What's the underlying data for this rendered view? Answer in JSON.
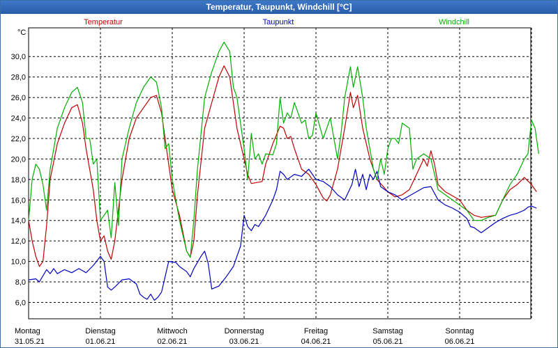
{
  "window": {
    "title": "Temperatur, Taupunkt, Windchill [°C]"
  },
  "chart_data": {
    "type": "line",
    "title": "Temperatur, Taupunkt, Windchill [°C]",
    "ylabel": "°C",
    "ylim": [
      4.4,
      32.8
    ],
    "xlim": [
      0,
      7
    ],
    "y_ticks": [
      "6,0",
      "8,0",
      "10,0",
      "12,0",
      "14,0",
      "16,0",
      "18,0",
      "20,0",
      "22,0",
      "24,0",
      "26,0",
      "28,0",
      "30,0"
    ],
    "y_tick_values": [
      6,
      8,
      10,
      12,
      14,
      16,
      18,
      20,
      22,
      24,
      26,
      28,
      30
    ],
    "x_days": [
      "Montag",
      "Dienstag",
      "Mittwoch",
      "Donnerstag",
      "Freitag",
      "Samstag",
      "Sonntag"
    ],
    "x_dates": [
      "31.05.21",
      "01.06.21",
      "02.06.21",
      "03.06.21",
      "04.06.21",
      "05.06.21",
      "06.06.21"
    ],
    "grid": true,
    "colors": {
      "temperature": "#c00000",
      "dewpoint": "#0000c0",
      "windchill": "#00b000",
      "grid": "#000000"
    },
    "series": [
      {
        "name": "Temperatur",
        "color": "#c00000",
        "points": [
          [
            0,
            14.0
          ],
          [
            0.05,
            12.0
          ],
          [
            0.1,
            10.5
          ],
          [
            0.15,
            9.5
          ],
          [
            0.2,
            10.0
          ],
          [
            0.25,
            13.5
          ],
          [
            0.3,
            18.0
          ],
          [
            0.4,
            21.5
          ],
          [
            0.5,
            23.5
          ],
          [
            0.6,
            25.0
          ],
          [
            0.68,
            25.3
          ],
          [
            0.75,
            23.5
          ],
          [
            0.8,
            21.0
          ],
          [
            0.9,
            17.0
          ],
          [
            0.95,
            14.0
          ],
          [
            1.0,
            12.0
          ],
          [
            1.05,
            12.5
          ],
          [
            1.1,
            11.0
          ],
          [
            1.15,
            10.2
          ],
          [
            1.2,
            12.0
          ],
          [
            1.3,
            18.0
          ],
          [
            1.4,
            22.0
          ],
          [
            1.5,
            24.0
          ],
          [
            1.6,
            25.0
          ],
          [
            1.7,
            26.0
          ],
          [
            1.78,
            26.2
          ],
          [
            1.85,
            24.5
          ],
          [
            1.9,
            22.0
          ],
          [
            2.0,
            17.0
          ],
          [
            2.1,
            14.5
          ],
          [
            2.2,
            11.0
          ],
          [
            2.25,
            10.4
          ],
          [
            2.3,
            12.0
          ],
          [
            2.35,
            16.5
          ],
          [
            2.45,
            23.0
          ],
          [
            2.55,
            25.5
          ],
          [
            2.65,
            28.0
          ],
          [
            2.72,
            29.1
          ],
          [
            2.8,
            28.0
          ],
          [
            2.9,
            23.0
          ],
          [
            3.0,
            20.0
          ],
          [
            3.05,
            18.5
          ],
          [
            3.1,
            17.6
          ],
          [
            3.25,
            17.8
          ],
          [
            3.3,
            19.5
          ],
          [
            3.4,
            21.5
          ],
          [
            3.5,
            23.2
          ],
          [
            3.55,
            23.0
          ],
          [
            3.6,
            22.0
          ],
          [
            3.65,
            22.2
          ],
          [
            3.7,
            21.0
          ],
          [
            3.8,
            19.0
          ],
          [
            3.9,
            18.5
          ],
          [
            4.0,
            17.5
          ],
          [
            4.1,
            16.2
          ],
          [
            4.15,
            15.9
          ],
          [
            4.2,
            16.5
          ],
          [
            4.3,
            19.0
          ],
          [
            4.4,
            23.0
          ],
          [
            4.48,
            26.5
          ],
          [
            4.52,
            25.0
          ],
          [
            4.58,
            26.2
          ],
          [
            4.65,
            23.0
          ],
          [
            4.75,
            20.0
          ],
          [
            4.85,
            18.0
          ],
          [
            5.0,
            16.8
          ],
          [
            5.1,
            16.3
          ],
          [
            5.2,
            16.5
          ],
          [
            5.3,
            17.0
          ],
          [
            5.4,
            18.5
          ],
          [
            5.5,
            20.0
          ],
          [
            5.55,
            19.3
          ],
          [
            5.6,
            20.8
          ],
          [
            5.65,
            19.5
          ],
          [
            5.7,
            17.5
          ],
          [
            5.8,
            16.8
          ],
          [
            5.9,
            16.4
          ],
          [
            6.0,
            16.0
          ],
          [
            6.1,
            15.0
          ],
          [
            6.2,
            14.5
          ],
          [
            6.3,
            14.3
          ],
          [
            6.4,
            14.4
          ],
          [
            6.5,
            14.5
          ],
          [
            6.6,
            16.0
          ],
          [
            6.7,
            17.0
          ],
          [
            6.8,
            17.5
          ],
          [
            6.9,
            18.2
          ],
          [
            7.0,
            17.5
          ],
          [
            7.07,
            16.8
          ]
        ]
      },
      {
        "name": "Taupunkt",
        "color": "#0000c0",
        "points": [
          [
            0,
            8.2
          ],
          [
            0.1,
            8.3
          ],
          [
            0.15,
            8.0
          ],
          [
            0.25,
            9.2
          ],
          [
            0.3,
            8.8
          ],
          [
            0.35,
            9.3
          ],
          [
            0.4,
            8.8
          ],
          [
            0.5,
            9.2
          ],
          [
            0.6,
            8.9
          ],
          [
            0.7,
            9.3
          ],
          [
            0.8,
            8.9
          ],
          [
            0.9,
            9.6
          ],
          [
            1.0,
            10.5
          ],
          [
            1.05,
            10.0
          ],
          [
            1.1,
            7.5
          ],
          [
            1.15,
            7.2
          ],
          [
            1.2,
            7.5
          ],
          [
            1.3,
            8.2
          ],
          [
            1.4,
            8.3
          ],
          [
            1.5,
            7.8
          ],
          [
            1.55,
            6.8
          ],
          [
            1.6,
            6.5
          ],
          [
            1.65,
            6.3
          ],
          [
            1.7,
            6.8
          ],
          [
            1.75,
            6.2
          ],
          [
            1.8,
            6.5
          ],
          [
            1.85,
            7.0
          ],
          [
            1.9,
            8.5
          ],
          [
            1.95,
            10.0
          ],
          [
            2.05,
            9.9
          ],
          [
            2.1,
            9.5
          ],
          [
            2.2,
            9.0
          ],
          [
            2.25,
            8.5
          ],
          [
            2.3,
            9.3
          ],
          [
            2.4,
            10.5
          ],
          [
            2.45,
            11.0
          ],
          [
            2.5,
            9.8
          ],
          [
            2.55,
            7.3
          ],
          [
            2.65,
            7.6
          ],
          [
            2.75,
            8.5
          ],
          [
            2.85,
            9.5
          ],
          [
            2.95,
            11.5
          ],
          [
            3.0,
            14.5
          ],
          [
            3.05,
            13.4
          ],
          [
            3.1,
            13.0
          ],
          [
            3.15,
            13.6
          ],
          [
            3.2,
            13.4
          ],
          [
            3.3,
            14.5
          ],
          [
            3.4,
            16.0
          ],
          [
            3.45,
            17.0
          ],
          [
            3.5,
            18.8
          ],
          [
            3.55,
            18.5
          ],
          [
            3.6,
            18.0
          ],
          [
            3.7,
            18.5
          ],
          [
            3.8,
            18.3
          ],
          [
            3.9,
            19.0
          ],
          [
            3.95,
            18.5
          ],
          [
            4.0,
            18.0
          ],
          [
            4.1,
            17.8
          ],
          [
            4.2,
            17.3
          ],
          [
            4.3,
            16.5
          ],
          [
            4.4,
            16.0
          ],
          [
            4.5,
            17.5
          ],
          [
            4.55,
            19.0
          ],
          [
            4.6,
            17.3
          ],
          [
            4.65,
            18.5
          ],
          [
            4.7,
            17.0
          ],
          [
            4.75,
            18.5
          ],
          [
            4.8,
            18.0
          ],
          [
            4.85,
            18.8
          ],
          [
            4.9,
            17.3
          ],
          [
            5.0,
            16.8
          ],
          [
            5.1,
            16.5
          ],
          [
            5.2,
            16.0
          ],
          [
            5.3,
            16.4
          ],
          [
            5.4,
            16.8
          ],
          [
            5.5,
            17.2
          ],
          [
            5.6,
            17.3
          ],
          [
            5.7,
            16.0
          ],
          [
            5.8,
            15.5
          ],
          [
            5.9,
            15.2
          ],
          [
            6.0,
            14.8
          ],
          [
            6.1,
            14.2
          ],
          [
            6.15,
            13.4
          ],
          [
            6.2,
            13.3
          ],
          [
            6.3,
            12.8
          ],
          [
            6.4,
            13.3
          ],
          [
            6.5,
            13.8
          ],
          [
            6.6,
            14.2
          ],
          [
            6.7,
            14.5
          ],
          [
            6.8,
            14.7
          ],
          [
            6.9,
            15.0
          ],
          [
            6.95,
            15.3
          ],
          [
            7.0,
            15.4
          ],
          [
            7.07,
            15.2
          ]
        ]
      },
      {
        "name": "Windchill",
        "color": "#00b000",
        "points": [
          [
            0,
            14.0
          ],
          [
            0.05,
            18.0
          ],
          [
            0.1,
            19.5
          ],
          [
            0.15,
            19.0
          ],
          [
            0.2,
            17.5
          ],
          [
            0.25,
            15.0
          ],
          [
            0.3,
            19.0
          ],
          [
            0.4,
            23.0
          ],
          [
            0.5,
            25.0
          ],
          [
            0.6,
            26.5
          ],
          [
            0.68,
            27.0
          ],
          [
            0.75,
            25.5
          ],
          [
            0.8,
            22.0
          ],
          [
            0.85,
            22.0
          ],
          [
            0.9,
            19.5
          ],
          [
            0.95,
            20.0
          ],
          [
            1.0,
            14.0
          ],
          [
            1.05,
            14.5
          ],
          [
            1.1,
            15.0
          ],
          [
            1.15,
            12.3
          ],
          [
            1.2,
            17.7
          ],
          [
            1.25,
            13.5
          ],
          [
            1.3,
            20.0
          ],
          [
            1.4,
            23.0
          ],
          [
            1.5,
            25.5
          ],
          [
            1.6,
            27.0
          ],
          [
            1.7,
            28.0
          ],
          [
            1.78,
            27.5
          ],
          [
            1.85,
            25.0
          ],
          [
            1.9,
            21.0
          ],
          [
            1.95,
            21.5
          ],
          [
            2.0,
            18.0
          ],
          [
            2.1,
            14.0
          ],
          [
            2.2,
            11.0
          ],
          [
            2.25,
            10.4
          ],
          [
            2.3,
            14.0
          ],
          [
            2.35,
            19.0
          ],
          [
            2.45,
            26.0
          ],
          [
            2.55,
            28.5
          ],
          [
            2.65,
            30.5
          ],
          [
            2.72,
            31.4
          ],
          [
            2.8,
            30.5
          ],
          [
            2.85,
            27.0
          ],
          [
            2.9,
            26.0
          ],
          [
            3.0,
            21.0
          ],
          [
            3.05,
            18.0
          ],
          [
            3.1,
            22.5
          ],
          [
            3.15,
            20.0
          ],
          [
            3.2,
            20.5
          ],
          [
            3.25,
            19.5
          ],
          [
            3.3,
            20.5
          ],
          [
            3.4,
            20.4
          ],
          [
            3.45,
            21.5
          ],
          [
            3.5,
            26.0
          ],
          [
            3.55,
            23.5
          ],
          [
            3.6,
            24.5
          ],
          [
            3.65,
            24.0
          ],
          [
            3.7,
            25.5
          ],
          [
            3.8,
            23.5
          ],
          [
            3.85,
            23.8
          ],
          [
            3.9,
            22.0
          ],
          [
            3.95,
            22.3
          ],
          [
            4.0,
            24.5
          ],
          [
            4.1,
            22.0
          ],
          [
            4.2,
            24.0
          ],
          [
            4.3,
            20.0
          ],
          [
            4.35,
            22.5
          ],
          [
            4.4,
            26.0
          ],
          [
            4.48,
            29.0
          ],
          [
            4.52,
            27.0
          ],
          [
            4.58,
            29.0
          ],
          [
            4.65,
            26.0
          ],
          [
            4.7,
            23.0
          ],
          [
            4.8,
            19.0
          ],
          [
            4.85,
            18.0
          ],
          [
            4.9,
            20.0
          ],
          [
            4.95,
            18.5
          ],
          [
            5.0,
            21.0
          ],
          [
            5.05,
            22.0
          ],
          [
            5.1,
            22.0
          ],
          [
            5.15,
            21.5
          ],
          [
            5.2,
            23.5
          ],
          [
            5.3,
            23.0
          ],
          [
            5.35,
            19.0
          ],
          [
            5.4,
            20.0
          ],
          [
            5.5,
            20.5
          ],
          [
            5.6,
            20.0
          ],
          [
            5.65,
            18.5
          ],
          [
            5.7,
            17.0
          ],
          [
            5.8,
            16.5
          ],
          [
            5.9,
            16.0
          ],
          [
            6.0,
            15.5
          ],
          [
            6.1,
            15.0
          ],
          [
            6.2,
            14.0
          ],
          [
            6.3,
            14.0
          ],
          [
            6.4,
            14.3
          ],
          [
            6.5,
            14.5
          ],
          [
            6.6,
            16.0
          ],
          [
            6.7,
            17.5
          ],
          [
            6.8,
            18.5
          ],
          [
            6.9,
            20.0
          ],
          [
            6.95,
            20.5
          ],
          [
            7.0,
            23.8
          ],
          [
            7.05,
            23.0
          ],
          [
            7.1,
            20.5
          ]
        ]
      }
    ]
  }
}
